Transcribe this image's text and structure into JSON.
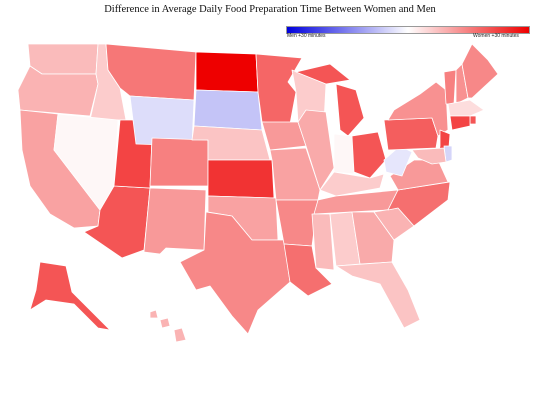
{
  "title": "Difference in Average Daily Food Preparation Time Between Women and Men",
  "legend": {
    "left_label": "Men +30 minutes",
    "right_label": "Women +30 minutes",
    "low_color": "#0000dd",
    "mid_color": "#ffffff",
    "high_color": "#ee0000"
  },
  "states": [
    {
      "id": "WA",
      "v": 8
    },
    {
      "id": "OR",
      "v": 9
    },
    {
      "id": "CA",
      "v": 11
    },
    {
      "id": "ID",
      "v": 6
    },
    {
      "id": "NV",
      "v": 1
    },
    {
      "id": "AZ",
      "v": 20
    },
    {
      "id": "UT",
      "v": 22
    },
    {
      "id": "MT",
      "v": 16
    },
    {
      "id": "WY",
      "v": -4
    },
    {
      "id": "CO",
      "v": 15
    },
    {
      "id": "NM",
      "v": 12
    },
    {
      "id": "ND",
      "v": 30
    },
    {
      "id": "SD",
      "v": -7
    },
    {
      "id": "NE",
      "v": 7
    },
    {
      "id": "KS",
      "v": 24
    },
    {
      "id": "OK",
      "v": 11
    },
    {
      "id": "TX",
      "v": 14
    },
    {
      "id": "MN",
      "v": 18
    },
    {
      "id": "IA",
      "v": 12
    },
    {
      "id": "MO",
      "v": 11
    },
    {
      "id": "AR",
      "v": 14
    },
    {
      "id": "LA",
      "v": 17
    },
    {
      "id": "WI",
      "v": 6
    },
    {
      "id": "IL",
      "v": 10
    },
    {
      "id": "MI",
      "v": 20
    },
    {
      "id": "IN",
      "v": 1
    },
    {
      "id": "OH",
      "v": 20
    },
    {
      "id": "KY",
      "v": 6
    },
    {
      "id": "TN",
      "v": 12
    },
    {
      "id": "MS",
      "v": 8
    },
    {
      "id": "AL",
      "v": 6
    },
    {
      "id": "GA",
      "v": 10
    },
    {
      "id": "FL",
      "v": 7
    },
    {
      "id": "SC",
      "v": 9
    },
    {
      "id": "NC",
      "v": 17
    },
    {
      "id": "VA",
      "v": 12
    },
    {
      "id": "WV",
      "v": -3
    },
    {
      "id": "PA",
      "v": 19
    },
    {
      "id": "NY",
      "v": 13
    },
    {
      "id": "VT",
      "v": 15
    },
    {
      "id": "NH",
      "v": 13
    },
    {
      "id": "ME",
      "v": 14
    },
    {
      "id": "MA",
      "v": 4
    },
    {
      "id": "RI",
      "v": 20
    },
    {
      "id": "CT",
      "v": 22
    },
    {
      "id": "NJ",
      "v": 22
    },
    {
      "id": "DE",
      "v": -5
    },
    {
      "id": "MD",
      "v": 8
    },
    {
      "id": "AK",
      "v": 20
    },
    {
      "id": "HI",
      "v": 9
    }
  ]
}
